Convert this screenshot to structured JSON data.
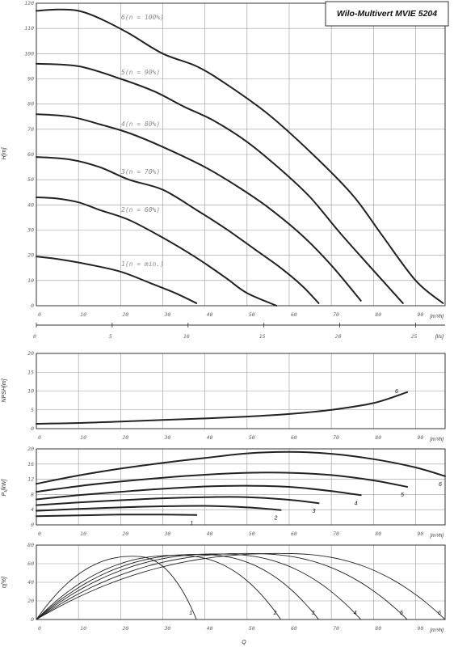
{
  "title": "Wilo-Multivert MVIE 5204",
  "q_label": "Q",
  "chart_data": [
    {
      "type": "line",
      "ylabel": "H[m]",
      "x_unit": "[m³/h]",
      "x_ticks": [
        "0",
        "10",
        "20",
        "30",
        "40",
        "50",
        "60",
        "70",
        "80",
        "90"
      ],
      "y_ticks": [
        "0",
        "10",
        "20",
        "30",
        "40",
        "50",
        "60",
        "70",
        "80",
        "90",
        "100",
        "110",
        "120"
      ],
      "xlim": [
        0,
        97
      ],
      "ylim": [
        0,
        120
      ],
      "secondary_x_unit": "[l/s]",
      "secondary_x_ticks": [
        "0",
        "5",
        "10",
        "15",
        "20",
        "25"
      ],
      "series": [
        {
          "name": "6(n = 100%)",
          "points": [
            [
              0,
              117
            ],
            [
              5,
              117.5
            ],
            [
              10,
              117
            ],
            [
              15,
              114
            ],
            [
              22,
              108
            ],
            [
              30,
              100
            ],
            [
              38,
              95
            ],
            [
              45,
              88
            ],
            [
              55,
              76
            ],
            [
              65,
              61
            ],
            [
              75,
              44
            ],
            [
              82,
              28
            ],
            [
              90,
              10
            ],
            [
              96.5,
              1
            ]
          ]
        },
        {
          "name": "5(n = 90%)",
          "points": [
            [
              0,
              96
            ],
            [
              10,
              95
            ],
            [
              20,
              90
            ],
            [
              28,
              85
            ],
            [
              35,
              79
            ],
            [
              42,
              73.5
            ],
            [
              50,
              65
            ],
            [
              58,
              54
            ],
            [
              65,
              43
            ],
            [
              72,
              29
            ],
            [
              80,
              14
            ],
            [
              87,
              1
            ]
          ]
        },
        {
          "name": "4(n = 80%)",
          "points": [
            [
              0,
              76
            ],
            [
              8,
              75
            ],
            [
              15,
              72
            ],
            [
              22,
              68.5
            ],
            [
              30,
              63
            ],
            [
              40,
              55
            ],
            [
              48,
              47
            ],
            [
              55,
              39
            ],
            [
              63,
              28
            ],
            [
              70,
              16
            ],
            [
              77,
              2
            ]
          ]
        },
        {
          "name": "3(n = 70%)",
          "points": [
            [
              0,
              59
            ],
            [
              8,
              58
            ],
            [
              15,
              55
            ],
            [
              22,
              50
            ],
            [
              30,
              46
            ],
            [
              38,
              38
            ],
            [
              45,
              30.5
            ],
            [
              53,
              21
            ],
            [
              58,
              15
            ],
            [
              63,
              8
            ],
            [
              67,
              1
            ]
          ]
        },
        {
          "name": "2(n = 60%)",
          "points": [
            [
              0,
              43
            ],
            [
              5,
              42.5
            ],
            [
              10,
              41
            ],
            [
              15,
              38
            ],
            [
              22,
              34
            ],
            [
              30,
              27
            ],
            [
              38,
              19
            ],
            [
              45,
              11
            ],
            [
              50,
              5
            ],
            [
              57,
              0
            ]
          ]
        },
        {
          "name": "1(n = min.)",
          "points": [
            [
              0,
              19.5
            ],
            [
              5,
              18.5
            ],
            [
              12,
              16.5
            ],
            [
              20,
              13.5
            ],
            [
              27,
              9
            ],
            [
              33,
              5
            ],
            [
              38,
              1
            ]
          ]
        }
      ]
    },
    {
      "type": "line",
      "ylabel": "NPSH[m]",
      "x_unit": "[m³/h]",
      "x_ticks": [
        "0",
        "10",
        "20",
        "30",
        "40",
        "50",
        "60",
        "70",
        "80",
        "90"
      ],
      "y_ticks": [
        "0",
        "5",
        "10",
        "15",
        "20"
      ],
      "xlim": [
        0,
        97
      ],
      "ylim": [
        0,
        20
      ],
      "series": [
        {
          "name": "6",
          "points": [
            [
              0,
              1.3
            ],
            [
              10,
              1.5
            ],
            [
              20,
              1.9
            ],
            [
              30,
              2.3
            ],
            [
              40,
              2.7
            ],
            [
              50,
              3.2
            ],
            [
              60,
              3.9
            ],
            [
              70,
              5.0
            ],
            [
              80,
              6.8
            ],
            [
              88,
              9.7
            ]
          ]
        }
      ]
    },
    {
      "type": "line",
      "ylabel": "P₁[kW]",
      "x_unit": "[m³/h]",
      "x_ticks": [
        "0",
        "10",
        "20",
        "30",
        "40",
        "50",
        "60",
        "70",
        "80",
        "90"
      ],
      "y_ticks": [
        "0",
        "4",
        "8",
        "12",
        "16",
        "20"
      ],
      "xlim": [
        0,
        97
      ],
      "ylim": [
        0,
        20
      ],
      "series": [
        {
          "name": "6",
          "points": [
            [
              0,
              10.8
            ],
            [
              10,
              13
            ],
            [
              20,
              14.8
            ],
            [
              30,
              16.3
            ],
            [
              40,
              17.6
            ],
            [
              50,
              18.8
            ],
            [
              60,
              19.2
            ],
            [
              70,
              18.7
            ],
            [
              80,
              17.3
            ],
            [
              90,
              15.1
            ],
            [
              97,
              12.8
            ]
          ]
        },
        {
          "name": "5",
          "points": [
            [
              0,
              8.7
            ],
            [
              10,
              10.2
            ],
            [
              20,
              11.4
            ],
            [
              30,
              12.4
            ],
            [
              40,
              13.2
            ],
            [
              50,
              13.7
            ],
            [
              60,
              13.7
            ],
            [
              70,
              13.1
            ],
            [
              80,
              11.7
            ],
            [
              88,
              10
            ]
          ]
        },
        {
          "name": "4",
          "points": [
            [
              0,
              6.7
            ],
            [
              10,
              7.8
            ],
            [
              20,
              8.7
            ],
            [
              30,
              9.5
            ],
            [
              40,
              10.1
            ],
            [
              50,
              10.3
            ],
            [
              60,
              10
            ],
            [
              70,
              8.9
            ],
            [
              77,
              7.8
            ]
          ]
        },
        {
          "name": "3",
          "points": [
            [
              0,
              5.2
            ],
            [
              10,
              5.9
            ],
            [
              20,
              6.5
            ],
            [
              30,
              7
            ],
            [
              40,
              7.3
            ],
            [
              50,
              7.3
            ],
            [
              60,
              6.6
            ],
            [
              67,
              5.7
            ]
          ]
        },
        {
          "name": "2",
          "points": [
            [
              0,
              3.7
            ],
            [
              10,
              4.2
            ],
            [
              20,
              4.6
            ],
            [
              30,
              4.9
            ],
            [
              40,
              5
            ],
            [
              50,
              4.6
            ],
            [
              58,
              3.9
            ]
          ]
        },
        {
          "name": "1",
          "points": [
            [
              0,
              2.3
            ],
            [
              10,
              2.5
            ],
            [
              20,
              2.7
            ],
            [
              30,
              2.7
            ],
            [
              38,
              2.6
            ]
          ]
        }
      ]
    },
    {
      "type": "line",
      "ylabel": "η[%]",
      "x_unit": "[m³/h]",
      "x_ticks": [
        "0",
        "10",
        "20",
        "30",
        "40",
        "50",
        "60",
        "70",
        "80",
        "90"
      ],
      "y_ticks": [
        "0",
        "20",
        "40",
        "60",
        "80"
      ],
      "xlim": [
        0,
        97
      ],
      "ylim": [
        0,
        80
      ],
      "series": [
        {
          "name": "1",
          "endQ": 38,
          "peakQ": 23,
          "peak": 68
        },
        {
          "name": "2",
          "endQ": 58,
          "peakQ": 33,
          "peak": 69
        },
        {
          "name": "3",
          "endQ": 67,
          "peakQ": 38,
          "peak": 70
        },
        {
          "name": "4",
          "endQ": 77,
          "peakQ": 43,
          "peak": 70.5
        },
        {
          "name": "5",
          "endQ": 88,
          "peakQ": 50,
          "peak": 71
        },
        {
          "name": "6",
          "endQ": 97,
          "peakQ": 58,
          "peak": 71
        }
      ]
    }
  ]
}
